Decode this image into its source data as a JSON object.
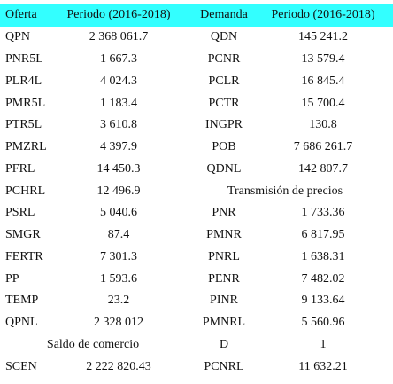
{
  "table": {
    "header": [
      "Oferta",
      "Periodo (2016-2018)",
      "Demanda",
      "Periodo (2016-2018)"
    ],
    "rows": [
      {
        "left": [
          "QPN",
          "2 368 061.7"
        ],
        "right": [
          "QDN",
          "145 241.2"
        ]
      },
      {
        "left": [
          "PNR5L",
          "1 667.3"
        ],
        "right": [
          "PCNR",
          "13 579.4"
        ]
      },
      {
        "left": [
          "PLR4L",
          "4 024.3"
        ],
        "right": [
          "PCLR",
          "16 845.4"
        ]
      },
      {
        "left": [
          "PMR5L",
          "1 183.4"
        ],
        "right": [
          "PCTR",
          "15 700.4"
        ]
      },
      {
        "left": [
          "PTR5L",
          "3 610.8"
        ],
        "right": [
          "INGPR",
          "130.8"
        ]
      },
      {
        "left": [
          "PMZRL",
          "4 397.9"
        ],
        "right": [
          "POB",
          "7 686 261.7"
        ]
      },
      {
        "left": [
          "PFRL",
          "14 450.3"
        ],
        "right": [
          "QDNL",
          "142 807.7"
        ]
      },
      {
        "left": [
          "PCHRL",
          "12 496.9"
        ],
        "right": [
          "Transmisión de precios"
        ]
      },
      {
        "left": [
          "PSRL",
          "5 040.6"
        ],
        "right": [
          "PNR",
          "1 733.36"
        ]
      },
      {
        "left": [
          "SMGR",
          "87.4"
        ],
        "right": [
          "PMNR",
          "6 817.95"
        ]
      },
      {
        "left": [
          "FERTR",
          "7 301.3"
        ],
        "right": [
          "PNRL",
          "1 638.31"
        ]
      },
      {
        "left": [
          "PP",
          "1 593.6"
        ],
        "right": [
          "PENR",
          "7 482.02"
        ]
      },
      {
        "left": [
          "TEMP",
          "23.2"
        ],
        "right": [
          "PINR",
          "9 133.64"
        ]
      },
      {
        "left": [
          "QPNL",
          "2 328 012"
        ],
        "right": [
          "PMNRL",
          "5 560.96"
        ]
      },
      {
        "left": [
          "Saldo de comercio"
        ],
        "right": [
          "D",
          "1"
        ]
      },
      {
        "left": [
          "SCEN",
          "2 222 820.43"
        ],
        "right": [
          "PCNRL",
          "11 632.21"
        ]
      }
    ]
  }
}
